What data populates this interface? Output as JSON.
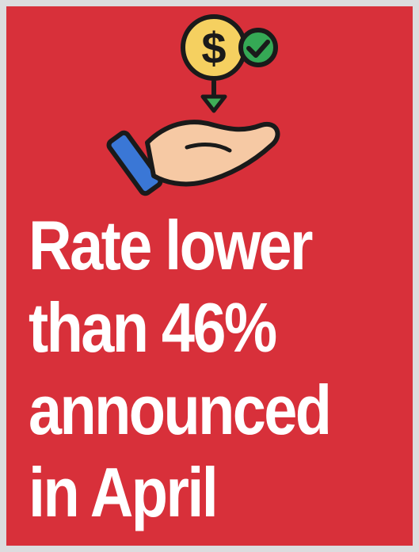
{
  "headline": {
    "lines": [
      "Rate lower",
      "than 46%",
      "announced",
      "in April"
    ]
  },
  "illustration": {
    "icons": [
      "dollar-coin-icon",
      "checkmark-badge-icon",
      "down-arrow-icon",
      "open-hand-icon"
    ],
    "colors": {
      "background": "#d8303a",
      "coin": "#f5d060",
      "check_badge": "#35a955",
      "arrow": "#3fae58",
      "hand": "#f6c9a4",
      "cuff": "#3a77d6",
      "outline": "#1a1a1a"
    }
  }
}
